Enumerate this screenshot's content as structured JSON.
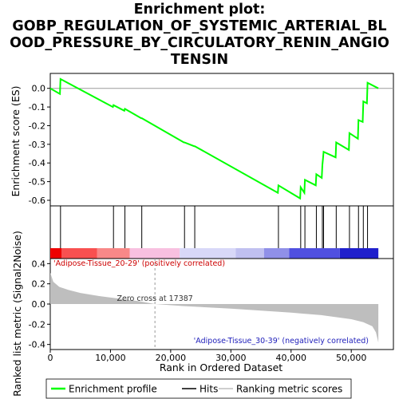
{
  "title_lines": [
    "Enrichment plot:",
    "GOBP_REGULATION_OF_SYSTEMIC_ARTERIAL_BL",
    "OOD_PRESSURE_BY_CIRCULATORY_RENIN_ANGIO",
    "TENSIN"
  ],
  "chart_data": {
    "type": "line",
    "x_range": [
      0,
      57000
    ],
    "x_ticks": [
      0,
      10000,
      20000,
      30000,
      40000,
      50000
    ],
    "x_tick_labels": [
      "0",
      "10,000",
      "20,000",
      "30,000",
      "40,000",
      "50,000"
    ],
    "xlabel": "Rank in Ordered Dataset",
    "legend": {
      "placement": "bottom",
      "entries": [
        "Enrichment profile",
        "Hits",
        "Ranking metric scores"
      ]
    },
    "enrichment": {
      "ylabel": "Enrichment score (ES)",
      "ylim": [
        -0.63,
        0.08
      ],
      "y_ticks": [
        0.0,
        -0.1,
        -0.2,
        -0.3,
        -0.4,
        -0.5,
        -0.6
      ],
      "y_tick_labels": [
        "0.0",
        "-0.1",
        "-0.2",
        "-0.3",
        "-0.4",
        "-0.5",
        "-0.6"
      ],
      "color": "#00ff00",
      "points": [
        [
          0,
          0.0
        ],
        [
          1600,
          -0.03
        ],
        [
          1700,
          0.05
        ],
        [
          10400,
          -0.1
        ],
        [
          10500,
          -0.09
        ],
        [
          12300,
          -0.12
        ],
        [
          12400,
          -0.11
        ],
        [
          15100,
          -0.16
        ],
        [
          15200,
          -0.16
        ],
        [
          22200,
          -0.29
        ],
        [
          22300,
          -0.29
        ],
        [
          23900,
          -0.31
        ],
        [
          24000,
          -0.31
        ],
        [
          37800,
          -0.56
        ],
        [
          37900,
          -0.52
        ],
        [
          41500,
          -0.59
        ],
        [
          41600,
          -0.53
        ],
        [
          42200,
          -0.56
        ],
        [
          42300,
          -0.49
        ],
        [
          44100,
          -0.52
        ],
        [
          44200,
          -0.46
        ],
        [
          45100,
          -0.48
        ],
        [
          45200,
          -0.41
        ],
        [
          45300,
          -0.38
        ],
        [
          45400,
          -0.34
        ],
        [
          47400,
          -0.37
        ],
        [
          47500,
          -0.29
        ],
        [
          49600,
          -0.33
        ],
        [
          49700,
          -0.24
        ],
        [
          51100,
          -0.27
        ],
        [
          51200,
          -0.17
        ],
        [
          51900,
          -0.18
        ],
        [
          52000,
          -0.07
        ],
        [
          52600,
          -0.08
        ],
        [
          52700,
          0.03
        ],
        [
          54500,
          0.0
        ]
      ]
    },
    "hits": {
      "positions": [
        1700,
        10500,
        12400,
        15200,
        22300,
        24000,
        37900,
        41600,
        42300,
        44200,
        45200,
        45400,
        47500,
        49700,
        51200,
        52000,
        52700
      ]
    },
    "color_bar": {
      "label_positive": "'Adipose-Tissue_20-29' (positively correlated)",
      "label_negative": "'Adipose-Tissue_30-39' (negatively correlated)",
      "segments": [
        {
          "start": 0,
          "end": 1900,
          "color": "#ee0000"
        },
        {
          "start": 1900,
          "end": 7800,
          "color": "#f85050"
        },
        {
          "start": 7800,
          "end": 13200,
          "color": "#f88888"
        },
        {
          "start": 13200,
          "end": 21500,
          "color": "#f8c0e0"
        },
        {
          "start": 21500,
          "end": 30800,
          "color": "#d8d8f8"
        },
        {
          "start": 30800,
          "end": 35500,
          "color": "#c0c0f0"
        },
        {
          "start": 35500,
          "end": 39700,
          "color": "#9090e8"
        },
        {
          "start": 39700,
          "end": 48100,
          "color": "#5050e0"
        },
        {
          "start": 48100,
          "end": 54500,
          "color": "#2020cc"
        }
      ]
    },
    "metric": {
      "ylabel": "Ranked list metric (Signal2Noise)",
      "ylim": [
        -0.45,
        0.45
      ],
      "y_ticks": [
        0.4,
        0.2,
        0.0,
        -0.2,
        -0.4
      ],
      "y_tick_labels": [
        "0.4",
        "0.2",
        "0.0",
        "-0.2",
        "-0.4"
      ],
      "fill_color": "#bebebe",
      "zero_cross": 17387,
      "zero_cross_label": "Zero cross at 17387",
      "points": [
        [
          0,
          0.31
        ],
        [
          500,
          0.22
        ],
        [
          1500,
          0.17
        ],
        [
          3000,
          0.14
        ],
        [
          5000,
          0.11
        ],
        [
          8000,
          0.08
        ],
        [
          12000,
          0.05
        ],
        [
          15000,
          0.025
        ],
        [
          17387,
          0.0
        ],
        [
          22000,
          -0.02
        ],
        [
          30000,
          -0.045
        ],
        [
          40000,
          -0.085
        ],
        [
          45000,
          -0.11
        ],
        [
          50000,
          -0.15
        ],
        [
          52000,
          -0.18
        ],
        [
          53500,
          -0.22
        ],
        [
          54100,
          -0.28
        ],
        [
          54500,
          -0.38
        ]
      ]
    }
  }
}
